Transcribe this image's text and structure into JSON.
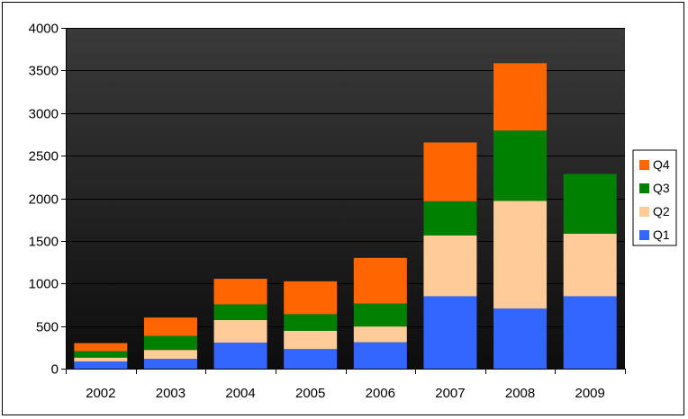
{
  "chart_data": {
    "type": "bar",
    "stacked": true,
    "categories": [
      "2002",
      "2003",
      "2004",
      "2005",
      "2006",
      "2007",
      "2008",
      "2009"
    ],
    "series": [
      {
        "name": "Q1",
        "color": "#3366ff",
        "values": [
          85,
          115,
          305,
          230,
          310,
          850,
          705,
          850
        ]
      },
      {
        "name": "Q2",
        "color": "#ffcc99",
        "values": [
          45,
          105,
          265,
          215,
          185,
          715,
          1265,
          735
        ]
      },
      {
        "name": "Q3",
        "color": "#008000",
        "values": [
          75,
          165,
          185,
          195,
          270,
          400,
          825,
          700
        ]
      },
      {
        "name": "Q4",
        "color": "#ff6600",
        "values": [
          95,
          215,
          300,
          385,
          535,
          690,
          790,
          0
        ]
      }
    ],
    "ylim": [
      0,
      4000
    ],
    "yticks": [
      0,
      500,
      1000,
      1500,
      2000,
      2500,
      3000,
      3500,
      4000
    ],
    "grid": true,
    "legend_position": "right",
    "plot_background": "#1a1a1a",
    "gridline_color": "#000000"
  }
}
